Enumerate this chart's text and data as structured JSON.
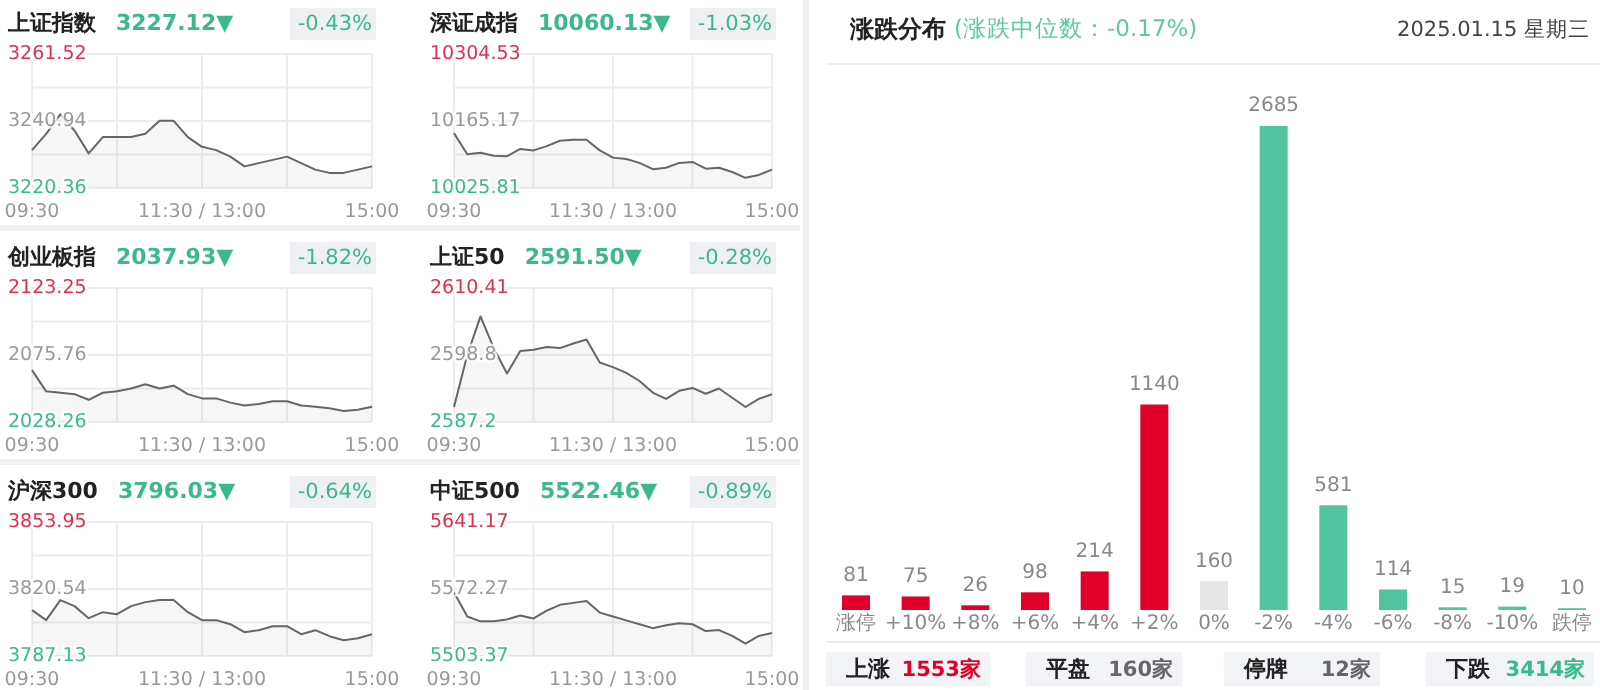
{
  "chart_data": [
    {
      "type": "area",
      "title": "上证指数",
      "subtitle": "3227.12▼",
      "annotations": [
        "-0.43%"
      ],
      "categories": [
        "09:30",
        null,
        null,
        null,
        null,
        null,
        null,
        null,
        null,
        null,
        null,
        null,
        "11:30 / 13:00",
        null,
        null,
        null,
        null,
        null,
        null,
        null,
        null,
        null,
        null,
        null,
        "15:00"
      ],
      "ylim": [
        3220.36,
        3261.52
      ],
      "yticks": [
        3261.52,
        {
          "value": 3251.23,
          "label": null
        },
        3240.94,
        {
          "value": 3230.65,
          "label": null
        },
        3220.36
      ],
      "grid": true,
      "series": [
        {
          "color": "#666666",
          "values": [
            3232,
            3237,
            3243,
            3238,
            3231,
            3236,
            3236,
            3236,
            3237,
            3241,
            3241,
            3236,
            3233,
            3232,
            3230,
            3227,
            3228,
            3229,
            3230,
            3228,
            3226,
            3225,
            3225,
            3226,
            3227
          ]
        }
      ]
    },
    {
      "type": "area",
      "title": "深证成指",
      "subtitle": "10060.13▼",
      "annotations": [
        "-1.03%"
      ],
      "categories": [
        "09:30",
        null,
        null,
        null,
        null,
        null,
        null,
        null,
        null,
        null,
        null,
        null,
        "11:30 / 13:00",
        null,
        null,
        null,
        null,
        null,
        null,
        null,
        null,
        null,
        null,
        null,
        "15:00"
      ],
      "ylim": [
        10025.81,
        10304.53
      ],
      "yticks": [
        10304.53,
        {
          "value": 10234.85,
          "label": null
        },
        10165.17,
        {
          "value": 10095.49,
          "label": null
        },
        10025.81
      ],
      "grid": true,
      "series": [
        {
          "color": "#666666",
          "values": [
            10140,
            10096,
            10099,
            10093,
            10092,
            10107,
            10104,
            10113,
            10124,
            10126,
            10126,
            10104,
            10089,
            10086,
            10078,
            10065,
            10068,
            10078,
            10080,
            10066,
            10068,
            10059,
            10047,
            10053,
            10064
          ]
        }
      ]
    },
    {
      "type": "area",
      "title": "创业板指",
      "subtitle": "2037.93▼",
      "annotations": [
        "-1.82%"
      ],
      "categories": [
        "09:30",
        null,
        null,
        null,
        null,
        null,
        null,
        null,
        null,
        null,
        null,
        null,
        "11:30 / 13:00",
        null,
        null,
        null,
        null,
        null,
        null,
        null,
        null,
        null,
        null,
        null,
        "15:00"
      ],
      "ylim": [
        2028.26,
        2123.25
      ],
      "yticks": [
        2123.25,
        {
          "value": 2099.5,
          "label": null
        },
        2075.76,
        {
          "value": 2052.01,
          "label": null
        },
        2028.26
      ],
      "grid": true,
      "series": [
        {
          "color": "#666666",
          "values": [
            2065,
            2050,
            2049,
            2048,
            2044,
            2049,
            2050,
            2052,
            2055,
            2052,
            2054,
            2048,
            2045,
            2045,
            2042,
            2040,
            2041,
            2043,
            2043,
            2040,
            2039,
            2038,
            2036,
            2037,
            2039
          ]
        }
      ]
    },
    {
      "type": "area",
      "title": "上证50",
      "subtitle": "2591.50▼",
      "annotations": [
        "-0.28%"
      ],
      "categories": [
        "09:30",
        null,
        null,
        null,
        null,
        null,
        null,
        null,
        null,
        null,
        null,
        null,
        "11:30 / 13:00",
        null,
        null,
        null,
        null,
        null,
        null,
        null,
        null,
        null,
        null,
        null,
        "15:00"
      ],
      "ylim": [
        2587.2,
        2610.41
      ],
      "yticks": [
        2610.41,
        {
          "value": 2604.61,
          "label": null
        },
        2598.8,
        {
          "value": 2593.0,
          "label": null
        },
        2587.2
      ],
      "grid": true,
      "series": [
        {
          "color": "#666666",
          "values": [
            2589.8,
            2598.8,
            2605.5,
            2600.0,
            2595.6,
            2599.5,
            2599.7,
            2600.2,
            2600.0,
            2600.8,
            2601.5,
            2597.5,
            2596.7,
            2595.7,
            2594.3,
            2592.3,
            2591.2,
            2592.6,
            2593.1,
            2592.1,
            2593.0,
            2591.4,
            2589.8,
            2591.2,
            2592.0
          ]
        }
      ]
    },
    {
      "type": "area",
      "title": "沪深300",
      "subtitle": "3796.03▼",
      "annotations": [
        "-0.64%"
      ],
      "categories": [
        "09:30",
        null,
        null,
        null,
        null,
        null,
        null,
        null,
        null,
        null,
        null,
        null,
        "11:30 / 13:00",
        null,
        null,
        null,
        null,
        null,
        null,
        null,
        null,
        null,
        null,
        null,
        "15:00"
      ],
      "ylim": [
        3787.13,
        3853.95
      ],
      "yticks": [
        3853.95,
        {
          "value": 3837.25,
          "label": null
        },
        3820.54,
        {
          "value": 3803.84,
          "label": null
        },
        3787.13
      ],
      "grid": true,
      "series": [
        {
          "color": "#666666",
          "values": [
            3810,
            3805,
            3815,
            3812,
            3806,
            3809,
            3808,
            3812,
            3814,
            3815,
            3815,
            3809,
            3805,
            3805,
            3803,
            3799,
            3800,
            3802,
            3802,
            3798,
            3800,
            3797,
            3795,
            3796,
            3798
          ]
        }
      ]
    },
    {
      "type": "area",
      "title": "中证500",
      "subtitle": "5522.46▼",
      "annotations": [
        "-0.89%"
      ],
      "categories": [
        "09:30",
        null,
        null,
        null,
        null,
        null,
        null,
        null,
        null,
        null,
        null,
        null,
        "11:30 / 13:00",
        null,
        null,
        null,
        null,
        null,
        null,
        null,
        null,
        null,
        null,
        null,
        "15:00"
      ],
      "ylim": [
        5503.37,
        5641.17
      ],
      "yticks": [
        5641.17,
        {
          "value": 5606.72,
          "label": null
        },
        5572.27,
        {
          "value": 5537.82,
          "label": null
        },
        5503.37
      ],
      "grid": true,
      "series": [
        {
          "color": "#666666",
          "values": [
            5569,
            5544,
            5539,
            5539,
            5541,
            5545,
            5542,
            5550,
            5556,
            5558,
            5560,
            5548,
            5544,
            5540,
            5536,
            5532,
            5535,
            5537,
            5536,
            5529,
            5530,
            5524,
            5516,
            5524,
            5527
          ]
        }
      ]
    },
    {
      "type": "bar",
      "title": "涨跌分布",
      "subtitle": "(涨跌中位数：-0.17%)",
      "annotations": [
        "2025.01.15 星期三",
        "上涨",
        "1553家",
        "平盘",
        "160家",
        "停牌",
        "12家",
        "下跌",
        "3414家"
      ],
      "data_labels": true,
      "categories": [
        "涨停",
        "+10%",
        "+8%",
        "+6%",
        "+4%",
        "+2%",
        "0%",
        "-2%",
        "-4%",
        "-6%",
        "-8%",
        "-10%",
        "跌停"
      ],
      "values": [
        81,
        75,
        26,
        98,
        214,
        1140,
        160,
        2685,
        581,
        114,
        15,
        19,
        10
      ],
      "colors": [
        "#e0002a",
        "#e0002a",
        "#e0002a",
        "#e0002a",
        "#e0002a",
        "#e0002a",
        "#e6e6e6",
        "#52c49f",
        "#52c49f",
        "#52c49f",
        "#52c49f",
        "#52c49f",
        "#52c49f"
      ]
    }
  ]
}
